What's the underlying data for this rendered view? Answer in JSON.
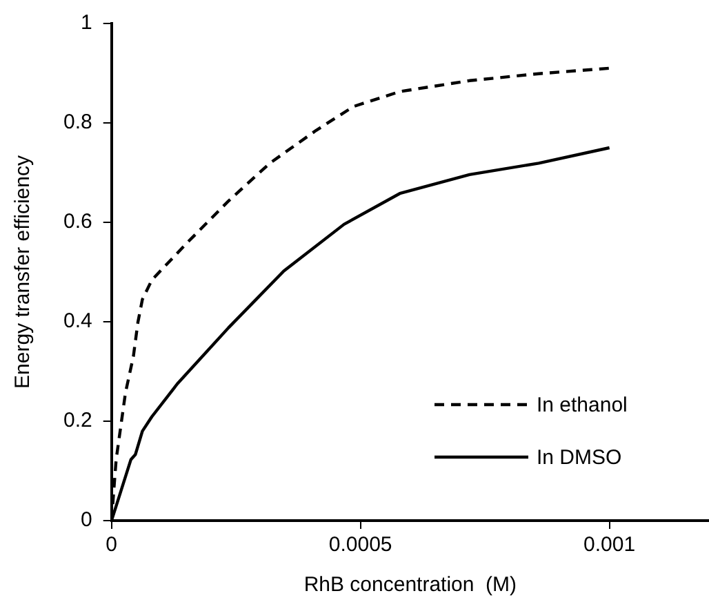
{
  "chart_data": {
    "type": "line",
    "xlabel": "RhB concentration  (M)",
    "ylabel": "Energy transfer efficiency",
    "xlim": [
      0,
      0.0012
    ],
    "xticks": [
      0,
      0.0005,
      0.001
    ],
    "ylim": [
      0,
      1
    ],
    "yticks": [
      0,
      0.2,
      0.4,
      0.6,
      0.8,
      1
    ],
    "grid": false,
    "legend": "bottom right",
    "marker": "none",
    "series": [
      {
        "name": "In ethanol",
        "color": "#000000",
        "line_style": "dashed",
        "x": [
          0,
          9.3e-06,
          2.8e-05,
          4.4e-05,
          5.3e-05,
          6.2e-05,
          8.1e-05,
          0.000151,
          0.000235,
          0.000318,
          0.000411,
          0.000486,
          0.000579,
          0.000719,
          0.000858,
          0.001
        ],
        "values": [
          0,
          0.123,
          0.257,
          0.331,
          0.399,
          0.445,
          0.484,
          0.558,
          0.643,
          0.719,
          0.785,
          0.833,
          0.863,
          0.885,
          0.899,
          0.91
        ]
      },
      {
        "name": "In DMSO",
        "color": "#000000",
        "line_style": "solid",
        "x": [
          0,
          3.9e-05,
          4.8e-05,
          6.2e-05,
          8.1e-05,
          0.000132,
          0.000235,
          0.000346,
          0.000467,
          0.000579,
          0.000719,
          0.000858,
          0.001
        ],
        "values": [
          0,
          0.123,
          0.133,
          0.18,
          0.209,
          0.275,
          0.388,
          0.502,
          0.596,
          0.658,
          0.696,
          0.719,
          0.75
        ]
      }
    ]
  }
}
